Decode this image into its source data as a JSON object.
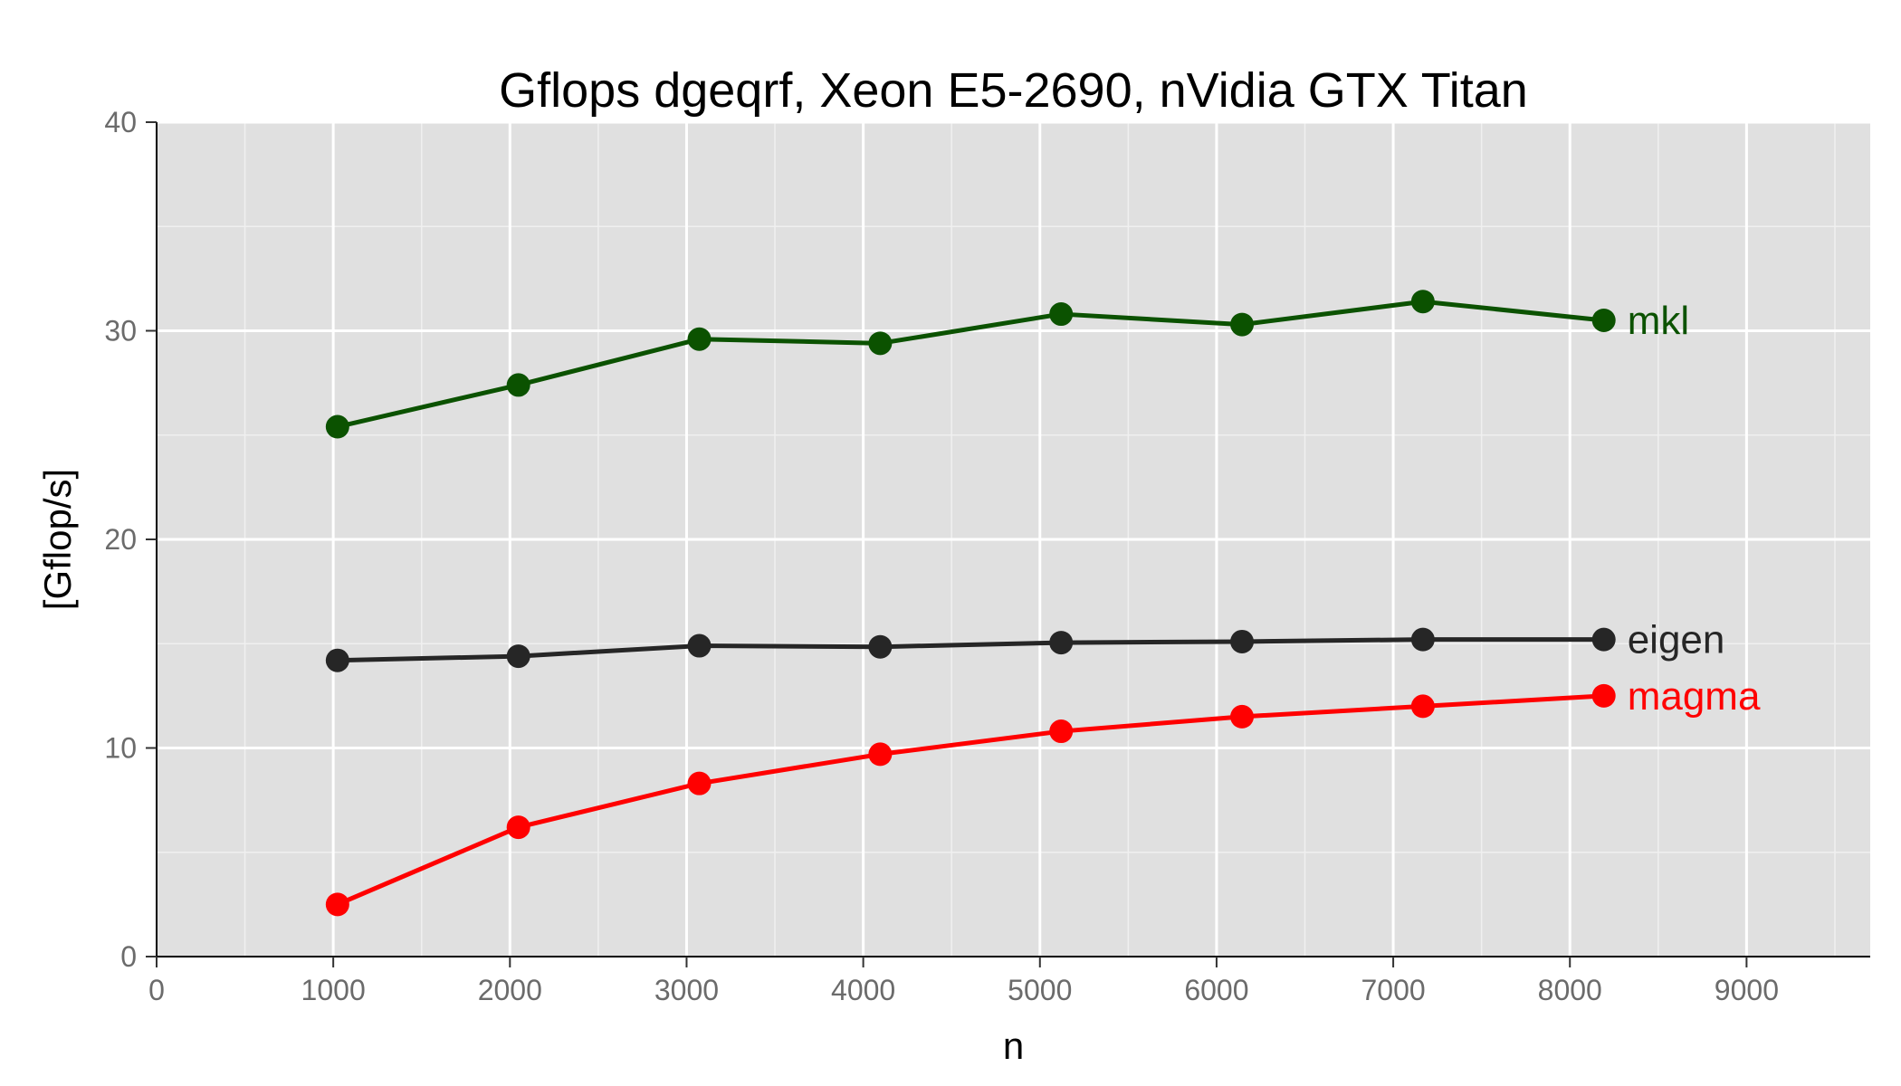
{
  "chart_data": {
    "type": "line",
    "title": "Gflops dgeqrf, Xeon E5-2690, nVidia GTX Titan",
    "xlabel": "n",
    "ylabel": "[Gflop/s]",
    "xlim": [
      0,
      9700
    ],
    "ylim": [
      0,
      40
    ],
    "x_ticks": [
      0,
      1000,
      2000,
      3000,
      4000,
      5000,
      6000,
      7000,
      8000,
      9000
    ],
    "y_ticks": [
      0,
      10,
      20,
      30,
      40
    ],
    "x_tick_labels": [
      "0",
      "1000",
      "2000",
      "3000",
      "4000",
      "5000",
      "6000",
      "7000",
      "8000",
      "9000"
    ],
    "y_tick_labels": [
      "0",
      "10",
      "20",
      "30",
      "40"
    ],
    "grid": true,
    "legend": "direct labels at line ends",
    "x": [
      1024,
      2048,
      3072,
      4096,
      5120,
      6144,
      7168,
      8192
    ],
    "series": [
      {
        "name": "mkl",
        "color": "#0b5200",
        "values": [
          25.4,
          27.4,
          29.6,
          29.4,
          30.8,
          30.3,
          31.4,
          30.5
        ]
      },
      {
        "name": "eigen",
        "color": "#262626",
        "values": [
          14.2,
          14.4,
          14.9,
          14.85,
          15.05,
          15.1,
          15.2,
          15.2
        ]
      },
      {
        "name": "magma",
        "color": "#ff0000",
        "values": [
          2.5,
          6.2,
          8.3,
          9.7,
          10.8,
          11.5,
          12.0,
          12.5
        ]
      }
    ]
  }
}
